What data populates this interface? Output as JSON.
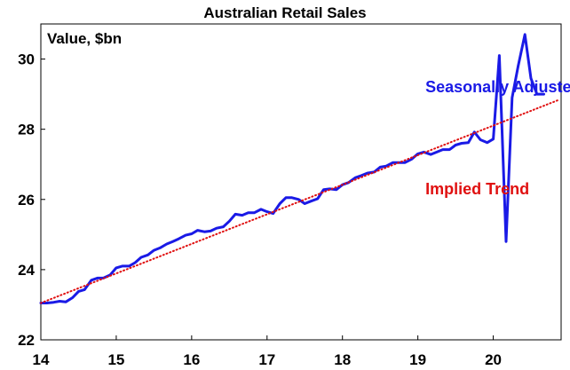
{
  "chart_data": {
    "type": "line",
    "title": "Australian Retail Sales",
    "ylabel": "Value, $bn",
    "xlabel": "",
    "xlim": [
      2014,
      2020.9
    ],
    "ylim": [
      22,
      31
    ],
    "yticks": [
      22,
      24,
      26,
      28,
      30
    ],
    "xticks": [
      14,
      15,
      16,
      17,
      18,
      19,
      20
    ],
    "grid": false,
    "series": [
      {
        "name": "Seasonally Adjusted",
        "color": "#1a1ae6",
        "style": "solid",
        "x": [
          2014.0,
          2014.08,
          2014.17,
          2014.25,
          2014.33,
          2014.42,
          2014.5,
          2014.58,
          2014.67,
          2014.75,
          2014.83,
          2014.92,
          2015.0,
          2015.08,
          2015.17,
          2015.25,
          2015.33,
          2015.42,
          2015.5,
          2015.58,
          2015.67,
          2015.75,
          2015.83,
          2015.92,
          2016.0,
          2016.08,
          2016.17,
          2016.25,
          2016.33,
          2016.42,
          2016.5,
          2016.58,
          2016.67,
          2016.75,
          2016.83,
          2016.92,
          2017.0,
          2017.08,
          2017.17,
          2017.25,
          2017.33,
          2017.42,
          2017.5,
          2017.58,
          2017.67,
          2017.75,
          2017.83,
          2017.92,
          2018.0,
          2018.08,
          2018.17,
          2018.25,
          2018.33,
          2018.42,
          2018.5,
          2018.58,
          2018.67,
          2018.75,
          2018.83,
          2018.92,
          2019.0,
          2019.08,
          2019.17,
          2019.25,
          2019.33,
          2019.42,
          2019.5,
          2019.58,
          2019.67,
          2019.75,
          2019.83,
          2019.92,
          2020.0,
          2020.08,
          2020.17,
          2020.25,
          2020.33,
          2020.42,
          2020.5,
          2020.58,
          2020.67
        ],
        "values": [
          23.05,
          23.05,
          23.07,
          23.1,
          23.08,
          23.2,
          23.38,
          23.43,
          23.7,
          23.76,
          23.76,
          23.85,
          24.05,
          24.1,
          24.1,
          24.2,
          24.35,
          24.42,
          24.55,
          24.62,
          24.73,
          24.8,
          24.88,
          24.98,
          25.02,
          25.12,
          25.08,
          25.1,
          25.18,
          25.22,
          25.38,
          25.58,
          25.55,
          25.62,
          25.62,
          25.72,
          25.65,
          25.6,
          25.88,
          26.05,
          26.05,
          26.0,
          25.88,
          25.95,
          26.02,
          26.28,
          26.3,
          26.28,
          26.42,
          26.48,
          26.62,
          26.68,
          26.75,
          26.78,
          26.92,
          26.95,
          27.05,
          27.05,
          27.05,
          27.15,
          27.3,
          27.35,
          27.28,
          27.35,
          27.42,
          27.42,
          27.55,
          27.6,
          27.62,
          27.92,
          27.7,
          27.62,
          27.72,
          30.1,
          24.8,
          28.9,
          29.8,
          30.7,
          29.45,
          29.0,
          29.0
        ]
      },
      {
        "name": "Implied Trend",
        "color": "#e01010",
        "style": "dotted",
        "x": [
          2014.0,
          2020.85
        ],
        "values": [
          23.05,
          28.82
        ]
      }
    ],
    "annotations": [
      {
        "text": "Seasonally Adjusted",
        "color": "#1a1ae6",
        "x": 2019.1,
        "y": 29.05
      },
      {
        "text": "Implied Trend",
        "color": "#e01010",
        "x": 2019.1,
        "y": 26.15
      }
    ]
  }
}
